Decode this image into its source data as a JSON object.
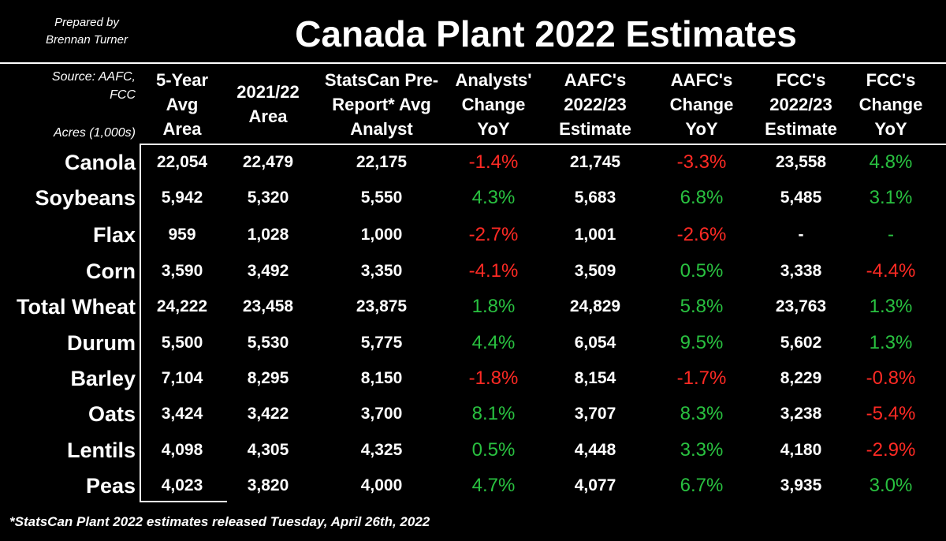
{
  "header": {
    "credit_line1": "Prepared by",
    "credit_line2": "Brennan Turner",
    "title": "Canada Plant 2022 Estimates"
  },
  "table": {
    "source_line1": "Source: AAFC,",
    "source_line2": "FCC",
    "units": "Acres (1,000s)",
    "columns": [
      {
        "lines": [
          "5-Year",
          "Avg",
          "Area"
        ]
      },
      {
        "lines": [
          "2021/22",
          "Area"
        ]
      },
      {
        "lines": [
          "StatsCan Pre-",
          "Report* Avg",
          "Analyst"
        ]
      },
      {
        "lines": [
          "Analysts'",
          "Change",
          "YoY"
        ]
      },
      {
        "lines": [
          "AAFC's",
          "2022/23",
          "Estimate"
        ]
      },
      {
        "lines": [
          "AAFC's",
          "Change",
          "YoY"
        ]
      },
      {
        "lines": [
          "FCC's",
          "2022/23",
          "Estimate"
        ]
      },
      {
        "lines": [
          "FCC's",
          "Change",
          "YoY"
        ]
      }
    ],
    "rows": [
      {
        "crop": "Canola",
        "values": [
          "22,054",
          "22,479",
          "22,175",
          "-1.4%",
          "21,745",
          "-3.3%",
          "23,558",
          "4.8%"
        ]
      },
      {
        "crop": "Soybeans",
        "values": [
          "5,942",
          "5,320",
          "5,550",
          "4.3%",
          "5,683",
          "6.8%",
          "5,485",
          "3.1%"
        ]
      },
      {
        "crop": "Flax",
        "values": [
          "959",
          "1,028",
          "1,000",
          "-2.7%",
          "1,001",
          "-2.6%",
          "-",
          "-"
        ]
      },
      {
        "crop": "Corn",
        "values": [
          "3,590",
          "3,492",
          "3,350",
          "-4.1%",
          "3,509",
          "0.5%",
          "3,338",
          "-4.4%"
        ]
      },
      {
        "crop": "Total Wheat",
        "values": [
          "24,222",
          "23,458",
          "23,875",
          "1.8%",
          "24,829",
          "5.8%",
          "23,763",
          "1.3%"
        ]
      },
      {
        "crop": "Durum",
        "values": [
          "5,500",
          "5,530",
          "5,775",
          "4.4%",
          "6,054",
          "9.5%",
          "5,602",
          "1.3%"
        ]
      },
      {
        "crop": "Barley",
        "values": [
          "7,104",
          "8,295",
          "8,150",
          "-1.8%",
          "8,154",
          "-1.7%",
          "8,229",
          "-0.8%"
        ]
      },
      {
        "crop": "Oats",
        "values": [
          "3,424",
          "3,422",
          "3,700",
          "8.1%",
          "3,707",
          "8.3%",
          "3,238",
          "-5.4%"
        ]
      },
      {
        "crop": "Lentils",
        "values": [
          "4,098",
          "4,305",
          "4,325",
          "0.5%",
          "4,448",
          "3.3%",
          "4,180",
          "-2.9%"
        ]
      },
      {
        "crop": "Peas",
        "values": [
          "4,023",
          "3,820",
          "4,000",
          "4.7%",
          "4,077",
          "6.7%",
          "3,935",
          "3.0%"
        ]
      }
    ]
  },
  "footnote": "*StatsCan Plant 2022 estimates released Tuesday, April 26th, 2022",
  "colors": {
    "positive": "#29c140",
    "negative": "#ff2a24",
    "background": "#000000"
  }
}
